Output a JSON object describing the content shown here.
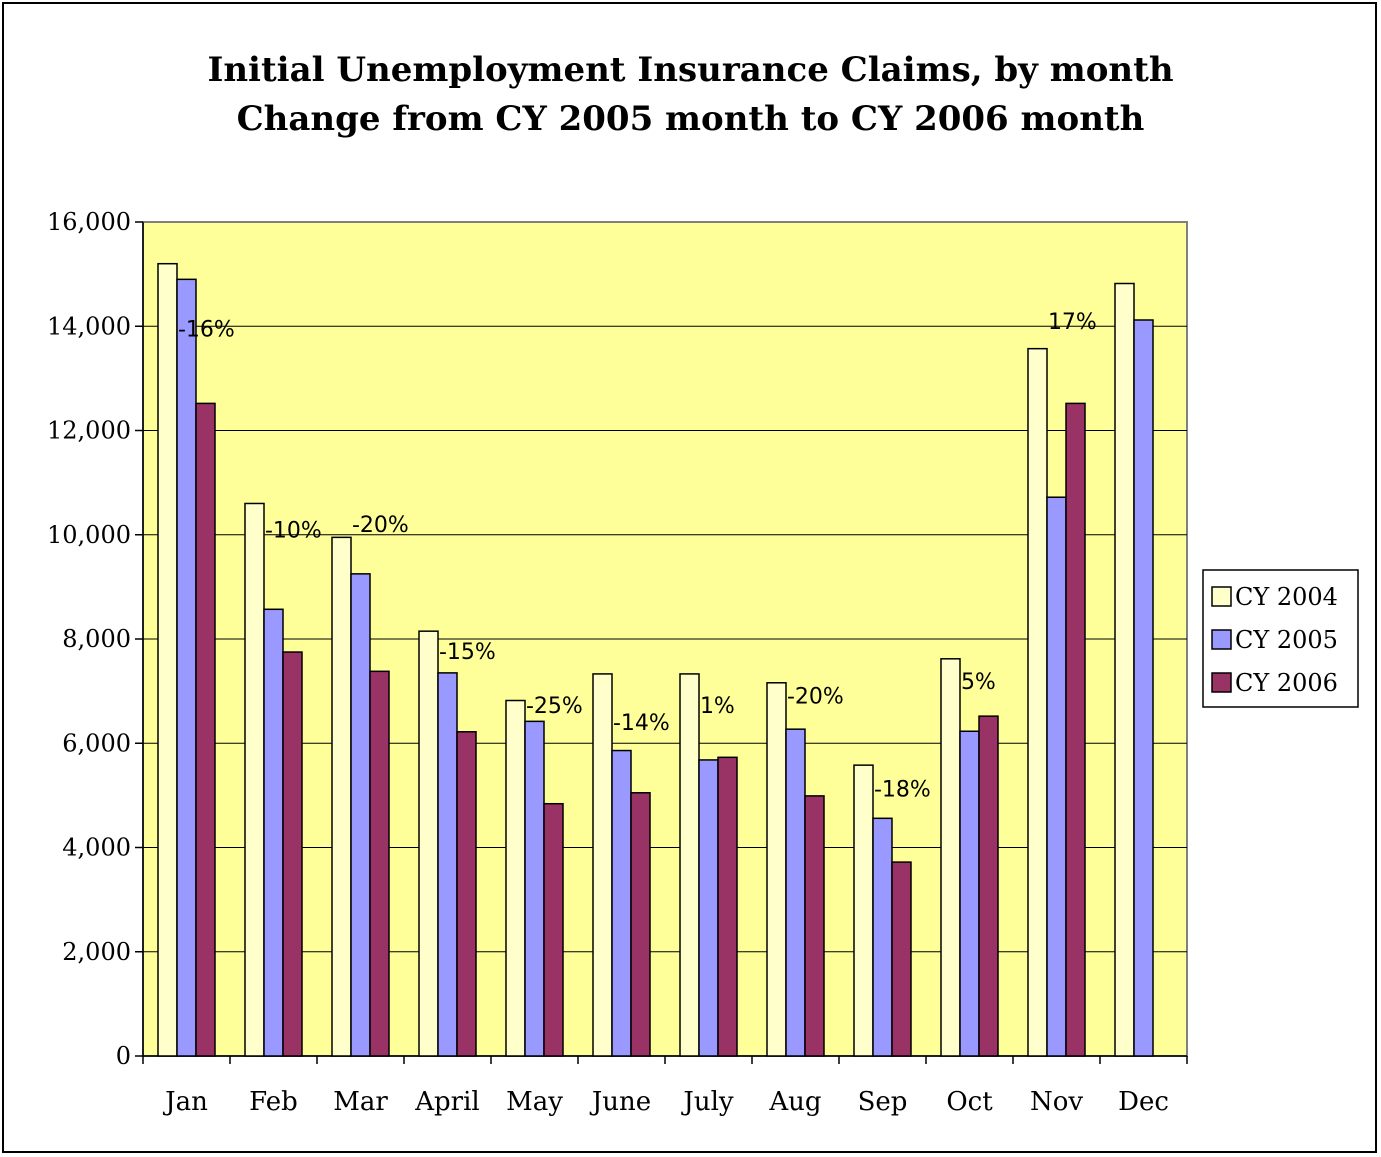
{
  "chart_data": {
    "type": "bar",
    "title": "Initial Unemployment Insurance Claims, by month",
    "subtitle": "Change from CY 2005 month to CY 2006 month",
    "xlabel": "",
    "ylabel": "",
    "ylim": [
      0,
      16000
    ],
    "yticks": [
      "0",
      "2,000",
      "4,000",
      "6,000",
      "8,000",
      "10,000",
      "12,000",
      "14,000",
      "16,000"
    ],
    "categories": [
      "Jan",
      "Feb",
      "Mar",
      "April",
      "May",
      "June",
      "July",
      "Aug",
      "Sep",
      "Oct",
      "Nov",
      "Dec"
    ],
    "series": [
      {
        "name": "CY 2004",
        "color": "#FFFFCC",
        "values": [
          15200,
          10600,
          9950,
          8150,
          6820,
          7330,
          7330,
          7160,
          5580,
          7620,
          13570,
          14820
        ]
      },
      {
        "name": "CY 2005",
        "color": "#9999FF",
        "values": [
          14900,
          8570,
          9250,
          7350,
          6420,
          5860,
          5680,
          6270,
          4560,
          6230,
          10720,
          14120
        ]
      },
      {
        "name": "CY 2006",
        "color": "#993366",
        "values": [
          12520,
          7750,
          7380,
          6220,
          4840,
          5050,
          5730,
          4990,
          3720,
          6520,
          12520,
          null
        ]
      }
    ],
    "change_labels": [
      "-16%",
      "-10%",
      "-20%",
      "-15%",
      "-25%",
      "-14%",
      "1%",
      "-20%",
      "-18%",
      "5%",
      "17%",
      ""
    ],
    "plot_background": "#FFFF99",
    "grid": true,
    "legend_position": "right"
  }
}
